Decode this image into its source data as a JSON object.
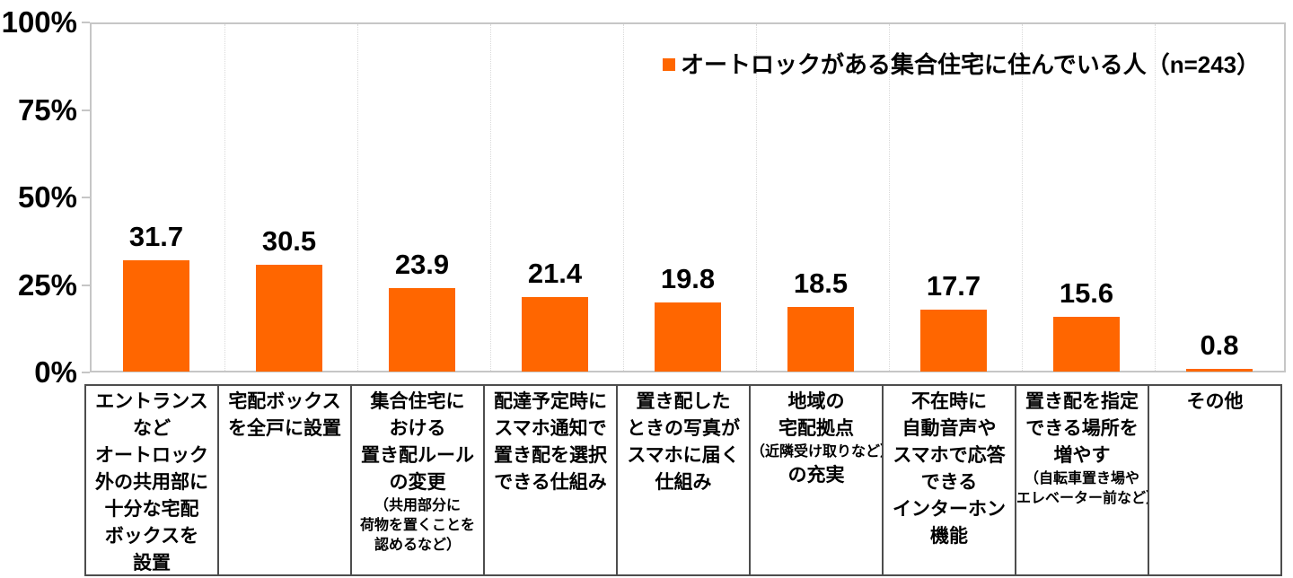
{
  "chart_data": {
    "type": "bar",
    "title": "",
    "legend": "オートロックがある集合住宅に住んでいる人（n=243）",
    "legend_position": "top-right-inside",
    "bar_color": "#ff6600",
    "value_unit": "%",
    "ylim": [
      0,
      100
    ],
    "y_ticks": [
      "100%",
      "75%",
      "50%",
      "25%",
      "0%"
    ],
    "grid": {
      "vertical_dotted": true,
      "horizontal": false
    },
    "values": [
      31.7,
      30.5,
      23.9,
      21.4,
      19.8,
      18.5,
      17.7,
      15.6,
      0.8
    ],
    "value_labels": [
      "31.7",
      "30.5",
      "23.9",
      "21.4",
      "19.8",
      "18.5",
      "17.7",
      "15.6",
      "0.8"
    ],
    "categories": [
      {
        "label": "エントランスなどオートロック外の共用部に十分な宅配ボックスを設置",
        "lines": [
          {
            "text": "エントランス",
            "size": "main"
          },
          {
            "text": "など",
            "size": "main"
          },
          {
            "text": "オートロック",
            "size": "main"
          },
          {
            "text": "外の共用部に",
            "size": "main"
          },
          {
            "text": "十分な宅配",
            "size": "main"
          },
          {
            "text": "ボックスを",
            "size": "main"
          },
          {
            "text": "設置",
            "size": "main"
          }
        ]
      },
      {
        "label": "宅配ボックスを全戸に設置",
        "lines": [
          {
            "text": "宅配ボックス",
            "size": "main"
          },
          {
            "text": "を全戸に設置",
            "size": "main"
          }
        ]
      },
      {
        "label": "集合住宅における置き配ルールの変更（共用部分に荷物を置くことを認めるなど）",
        "lines": [
          {
            "text": "集合住宅に",
            "size": "main"
          },
          {
            "text": "おける",
            "size": "main"
          },
          {
            "text": "置き配ルール",
            "size": "main"
          },
          {
            "text": "の変更",
            "size": "main"
          },
          {
            "text": "（共用部分に",
            "size": "sub"
          },
          {
            "text": "荷物を置くことを",
            "size": "sub"
          },
          {
            "text": "認めるなど）",
            "size": "sub"
          }
        ]
      },
      {
        "label": "配達予定時にスマホ通知で置き配を選択できる仕組み",
        "lines": [
          {
            "text": "配達予定時に",
            "size": "main"
          },
          {
            "text": "スマホ通知で",
            "size": "main"
          },
          {
            "text": "置き配を選択",
            "size": "main"
          },
          {
            "text": "できる仕組み",
            "size": "main"
          }
        ]
      },
      {
        "label": "置き配したときの写真がスマホに届く仕組み",
        "lines": [
          {
            "text": "置き配した",
            "size": "main"
          },
          {
            "text": "ときの写真が",
            "size": "main"
          },
          {
            "text": "スマホに届く",
            "size": "main"
          },
          {
            "text": "仕組み",
            "size": "main"
          }
        ]
      },
      {
        "label": "地域の宅配拠点（近隣受け取りなど）の充実",
        "lines": [
          {
            "text": "地域の",
            "size": "main"
          },
          {
            "text": "宅配拠点",
            "size": "main"
          },
          {
            "text": "（近隣受け取りなど）",
            "size": "sub"
          },
          {
            "text": "の充実",
            "size": "main"
          }
        ]
      },
      {
        "label": "不在時に自動音声やスマホで応答できるインターホン機能",
        "lines": [
          {
            "text": "不在時に",
            "size": "main"
          },
          {
            "text": "自動音声や",
            "size": "main"
          },
          {
            "text": "スマホで応答",
            "size": "main"
          },
          {
            "text": "できる",
            "size": "main"
          },
          {
            "text": "インターホン",
            "size": "main"
          },
          {
            "text": "機能",
            "size": "main"
          }
        ]
      },
      {
        "label": "置き配を指定できる場所を増やす（自転車置き場やエレベーター前など）",
        "lines": [
          {
            "text": "置き配を指定",
            "size": "main"
          },
          {
            "text": "できる場所を",
            "size": "main"
          },
          {
            "text": "増やす",
            "size": "main"
          },
          {
            "text": "（自転車置き場や",
            "size": "sub"
          },
          {
            "text": "エレベーター前など）",
            "size": "sub"
          }
        ]
      },
      {
        "label": "その他",
        "lines": [
          {
            "text": "その他",
            "size": "main"
          }
        ]
      }
    ]
  }
}
